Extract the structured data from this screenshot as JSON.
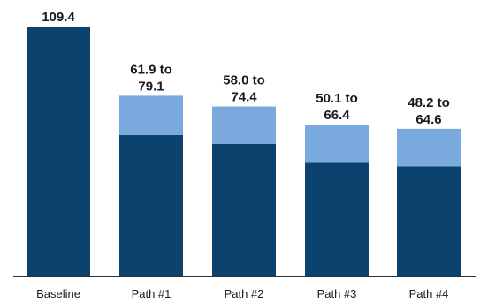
{
  "chart_data": {
    "type": "bar",
    "stacked": true,
    "categories": [
      "Baseline",
      "Path #1",
      "Path #2",
      "Path #3",
      "Path #4"
    ],
    "series": [
      {
        "values": [
          109.4,
          61.9,
          58.0,
          50.1,
          48.2
        ]
      },
      {
        "values": [
          0,
          17.2,
          16.4,
          16.3,
          16.4
        ]
      }
    ],
    "data_labels": [
      [
        "109.4"
      ],
      [
        "61.9 to",
        "79.1"
      ],
      [
        "58.0 to",
        "74.4"
      ],
      [
        "50.1 to",
        "66.4"
      ],
      [
        "48.2 to",
        "64.6"
      ]
    ],
    "ylim": [
      0,
      109.4
    ],
    "grid": false,
    "legend": "none",
    "title": "",
    "xlabel": "",
    "ylabel": "",
    "colors": {
      "base": "#0c426e",
      "range": "#7aa9dd",
      "axis": "#333333",
      "text": "#1a1a1a"
    }
  }
}
